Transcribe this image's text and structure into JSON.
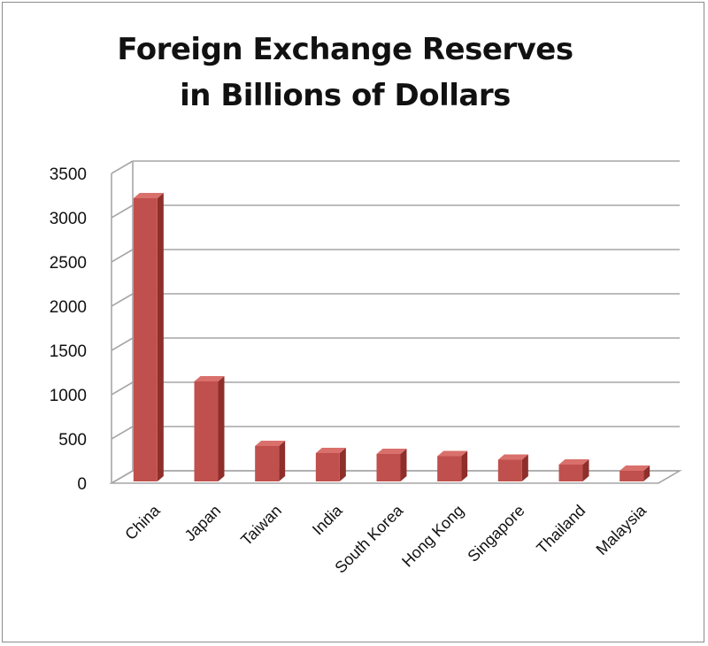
{
  "chart_data": {
    "type": "bar",
    "title": "Foreign Exchange Reserves in Billions of Dollars",
    "title_lines": [
      "Foreign Exchange Reserves",
      "in Billions of Dollars"
    ],
    "categories": [
      "China",
      "Japan",
      "Taiwan",
      "India",
      "South Korea",
      "Hong Kong",
      "Singapore",
      "Thailand",
      "Malaysia"
    ],
    "values": [
      3200,
      1130,
      400,
      320,
      310,
      285,
      245,
      190,
      120
    ],
    "ylim": [
      0,
      3500
    ],
    "yticks": [
      "0",
      "500",
      "1000",
      "1500",
      "2000",
      "2500",
      "3000",
      "3500"
    ],
    "grid": true,
    "legend": "none",
    "style": "3d-column",
    "colors": {
      "bar_front": "#c0504d",
      "bar_side": "#8e2f2c",
      "bar_top": "#d9706c",
      "grid": "#a6a6a6"
    }
  }
}
